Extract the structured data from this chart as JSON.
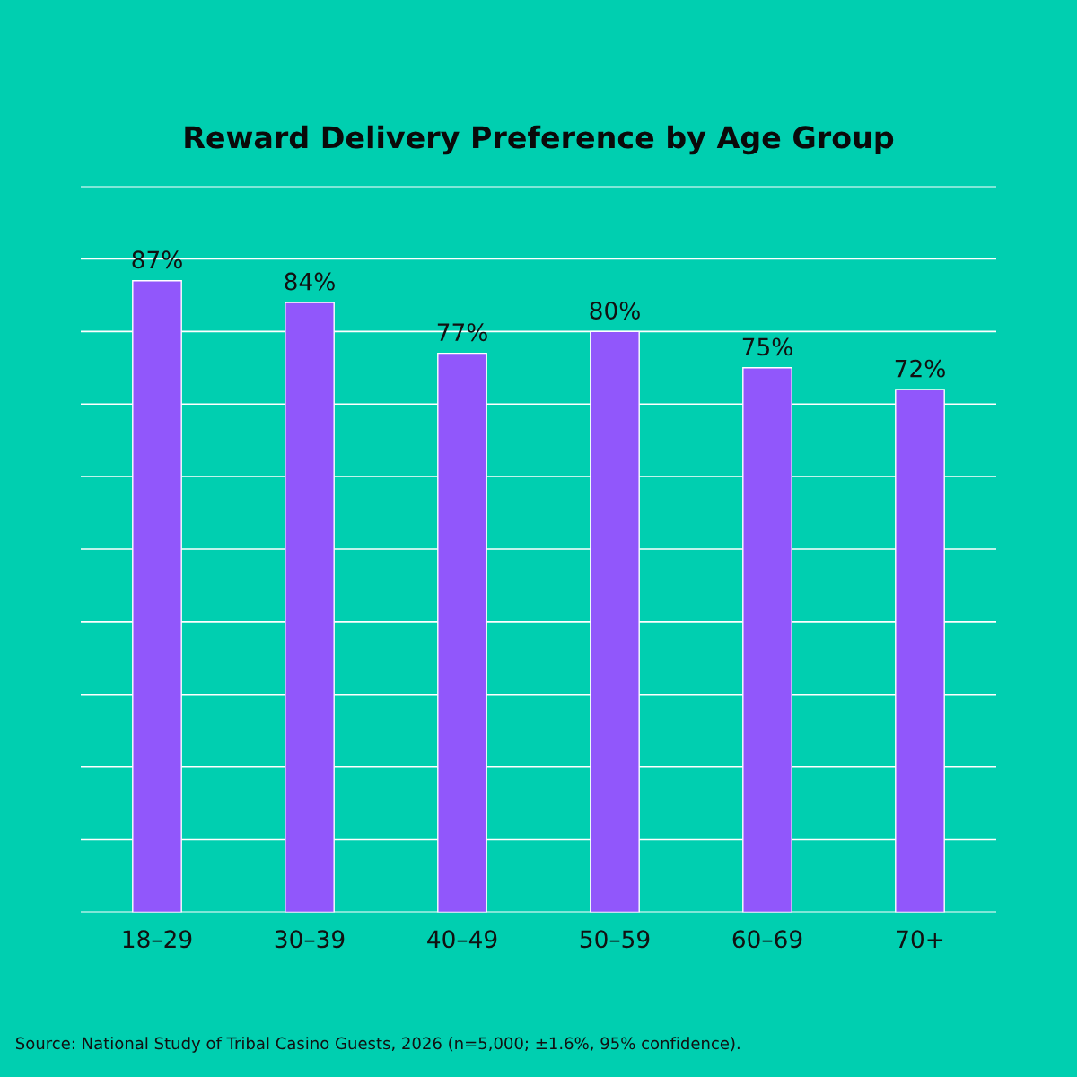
{
  "chart_data": {
    "type": "bar",
    "title": "Reward Delivery Preference by Age Group",
    "categories": [
      "18–29",
      "30–39",
      "40–49",
      "50–59",
      "60–69",
      "70+"
    ],
    "values": [
      87,
      84,
      77,
      80,
      75,
      72
    ],
    "value_labels": [
      "87%",
      "84%",
      "77%",
      "80%",
      "75%",
      "72%"
    ],
    "color": "#9157fb",
    "ylim": [
      0,
      100
    ],
    "yticks": [
      {
        "value": 0,
        "label": null
      },
      {
        "value": 10,
        "label": null
      },
      {
        "value": 20,
        "label": null
      },
      {
        "value": 30,
        "label": null
      },
      {
        "value": 40,
        "label": null
      },
      {
        "value": 50,
        "label": null
      },
      {
        "value": 60,
        "label": null
      },
      {
        "value": 70,
        "label": null
      },
      {
        "value": 80,
        "label": null
      },
      {
        "value": 90,
        "label": null
      },
      {
        "value": 100,
        "label": null
      }
    ],
    "tick_labels": "x",
    "grid": "y",
    "legend": false,
    "annotations": [
      "Source: National Study of Tribal Casino Guests, 2026 (n=5,000; ±1.6%, 95% confidence)."
    ]
  }
}
